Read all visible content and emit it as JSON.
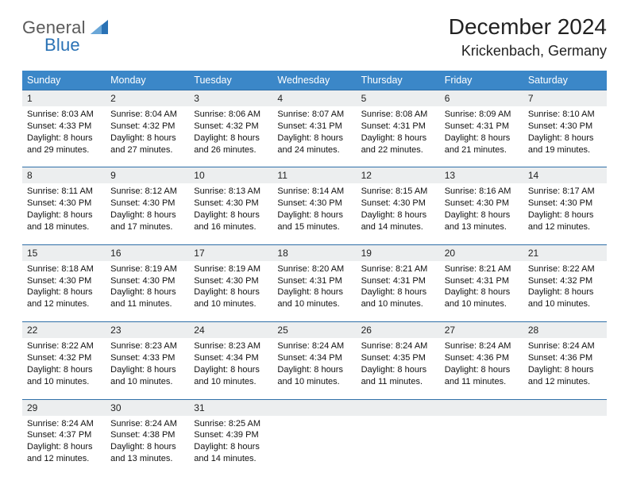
{
  "logo": {
    "word1": "General",
    "word2": "Blue",
    "tri_color": "#2a72b5",
    "text_gray": "#5a5a5a"
  },
  "title": {
    "month": "December 2024",
    "location": "Krickenbach, Germany"
  },
  "colors": {
    "header_bg": "#3b87c8",
    "header_text": "#ffffff",
    "daynum_bg": "#eceeef",
    "row_divider": "#2f6fa8",
    "body_text": "#111111"
  },
  "day_headers": [
    "Sunday",
    "Monday",
    "Tuesday",
    "Wednesday",
    "Thursday",
    "Friday",
    "Saturday"
  ],
  "weeks": [
    [
      {
        "num": "1",
        "sunrise": "Sunrise: 8:03 AM",
        "sunset": "Sunset: 4:33 PM",
        "daylight": "Daylight: 8 hours and 29 minutes."
      },
      {
        "num": "2",
        "sunrise": "Sunrise: 8:04 AM",
        "sunset": "Sunset: 4:32 PM",
        "daylight": "Daylight: 8 hours and 27 minutes."
      },
      {
        "num": "3",
        "sunrise": "Sunrise: 8:06 AM",
        "sunset": "Sunset: 4:32 PM",
        "daylight": "Daylight: 8 hours and 26 minutes."
      },
      {
        "num": "4",
        "sunrise": "Sunrise: 8:07 AM",
        "sunset": "Sunset: 4:31 PM",
        "daylight": "Daylight: 8 hours and 24 minutes."
      },
      {
        "num": "5",
        "sunrise": "Sunrise: 8:08 AM",
        "sunset": "Sunset: 4:31 PM",
        "daylight": "Daylight: 8 hours and 22 minutes."
      },
      {
        "num": "6",
        "sunrise": "Sunrise: 8:09 AM",
        "sunset": "Sunset: 4:31 PM",
        "daylight": "Daylight: 8 hours and 21 minutes."
      },
      {
        "num": "7",
        "sunrise": "Sunrise: 8:10 AM",
        "sunset": "Sunset: 4:30 PM",
        "daylight": "Daylight: 8 hours and 19 minutes."
      }
    ],
    [
      {
        "num": "8",
        "sunrise": "Sunrise: 8:11 AM",
        "sunset": "Sunset: 4:30 PM",
        "daylight": "Daylight: 8 hours and 18 minutes."
      },
      {
        "num": "9",
        "sunrise": "Sunrise: 8:12 AM",
        "sunset": "Sunset: 4:30 PM",
        "daylight": "Daylight: 8 hours and 17 minutes."
      },
      {
        "num": "10",
        "sunrise": "Sunrise: 8:13 AM",
        "sunset": "Sunset: 4:30 PM",
        "daylight": "Daylight: 8 hours and 16 minutes."
      },
      {
        "num": "11",
        "sunrise": "Sunrise: 8:14 AM",
        "sunset": "Sunset: 4:30 PM",
        "daylight": "Daylight: 8 hours and 15 minutes."
      },
      {
        "num": "12",
        "sunrise": "Sunrise: 8:15 AM",
        "sunset": "Sunset: 4:30 PM",
        "daylight": "Daylight: 8 hours and 14 minutes."
      },
      {
        "num": "13",
        "sunrise": "Sunrise: 8:16 AM",
        "sunset": "Sunset: 4:30 PM",
        "daylight": "Daylight: 8 hours and 13 minutes."
      },
      {
        "num": "14",
        "sunrise": "Sunrise: 8:17 AM",
        "sunset": "Sunset: 4:30 PM",
        "daylight": "Daylight: 8 hours and 12 minutes."
      }
    ],
    [
      {
        "num": "15",
        "sunrise": "Sunrise: 8:18 AM",
        "sunset": "Sunset: 4:30 PM",
        "daylight": "Daylight: 8 hours and 12 minutes."
      },
      {
        "num": "16",
        "sunrise": "Sunrise: 8:19 AM",
        "sunset": "Sunset: 4:30 PM",
        "daylight": "Daylight: 8 hours and 11 minutes."
      },
      {
        "num": "17",
        "sunrise": "Sunrise: 8:19 AM",
        "sunset": "Sunset: 4:30 PM",
        "daylight": "Daylight: 8 hours and 10 minutes."
      },
      {
        "num": "18",
        "sunrise": "Sunrise: 8:20 AM",
        "sunset": "Sunset: 4:31 PM",
        "daylight": "Daylight: 8 hours and 10 minutes."
      },
      {
        "num": "19",
        "sunrise": "Sunrise: 8:21 AM",
        "sunset": "Sunset: 4:31 PM",
        "daylight": "Daylight: 8 hours and 10 minutes."
      },
      {
        "num": "20",
        "sunrise": "Sunrise: 8:21 AM",
        "sunset": "Sunset: 4:31 PM",
        "daylight": "Daylight: 8 hours and 10 minutes."
      },
      {
        "num": "21",
        "sunrise": "Sunrise: 8:22 AM",
        "sunset": "Sunset: 4:32 PM",
        "daylight": "Daylight: 8 hours and 10 minutes."
      }
    ],
    [
      {
        "num": "22",
        "sunrise": "Sunrise: 8:22 AM",
        "sunset": "Sunset: 4:32 PM",
        "daylight": "Daylight: 8 hours and 10 minutes."
      },
      {
        "num": "23",
        "sunrise": "Sunrise: 8:23 AM",
        "sunset": "Sunset: 4:33 PM",
        "daylight": "Daylight: 8 hours and 10 minutes."
      },
      {
        "num": "24",
        "sunrise": "Sunrise: 8:23 AM",
        "sunset": "Sunset: 4:34 PM",
        "daylight": "Daylight: 8 hours and 10 minutes."
      },
      {
        "num": "25",
        "sunrise": "Sunrise: 8:24 AM",
        "sunset": "Sunset: 4:34 PM",
        "daylight": "Daylight: 8 hours and 10 minutes."
      },
      {
        "num": "26",
        "sunrise": "Sunrise: 8:24 AM",
        "sunset": "Sunset: 4:35 PM",
        "daylight": "Daylight: 8 hours and 11 minutes."
      },
      {
        "num": "27",
        "sunrise": "Sunrise: 8:24 AM",
        "sunset": "Sunset: 4:36 PM",
        "daylight": "Daylight: 8 hours and 11 minutes."
      },
      {
        "num": "28",
        "sunrise": "Sunrise: 8:24 AM",
        "sunset": "Sunset: 4:36 PM",
        "daylight": "Daylight: 8 hours and 12 minutes."
      }
    ],
    [
      {
        "num": "29",
        "sunrise": "Sunrise: 8:24 AM",
        "sunset": "Sunset: 4:37 PM",
        "daylight": "Daylight: 8 hours and 12 minutes."
      },
      {
        "num": "30",
        "sunrise": "Sunrise: 8:24 AM",
        "sunset": "Sunset: 4:38 PM",
        "daylight": "Daylight: 8 hours and 13 minutes."
      },
      {
        "num": "31",
        "sunrise": "Sunrise: 8:25 AM",
        "sunset": "Sunset: 4:39 PM",
        "daylight": "Daylight: 8 hours and 14 minutes."
      },
      null,
      null,
      null,
      null
    ]
  ]
}
